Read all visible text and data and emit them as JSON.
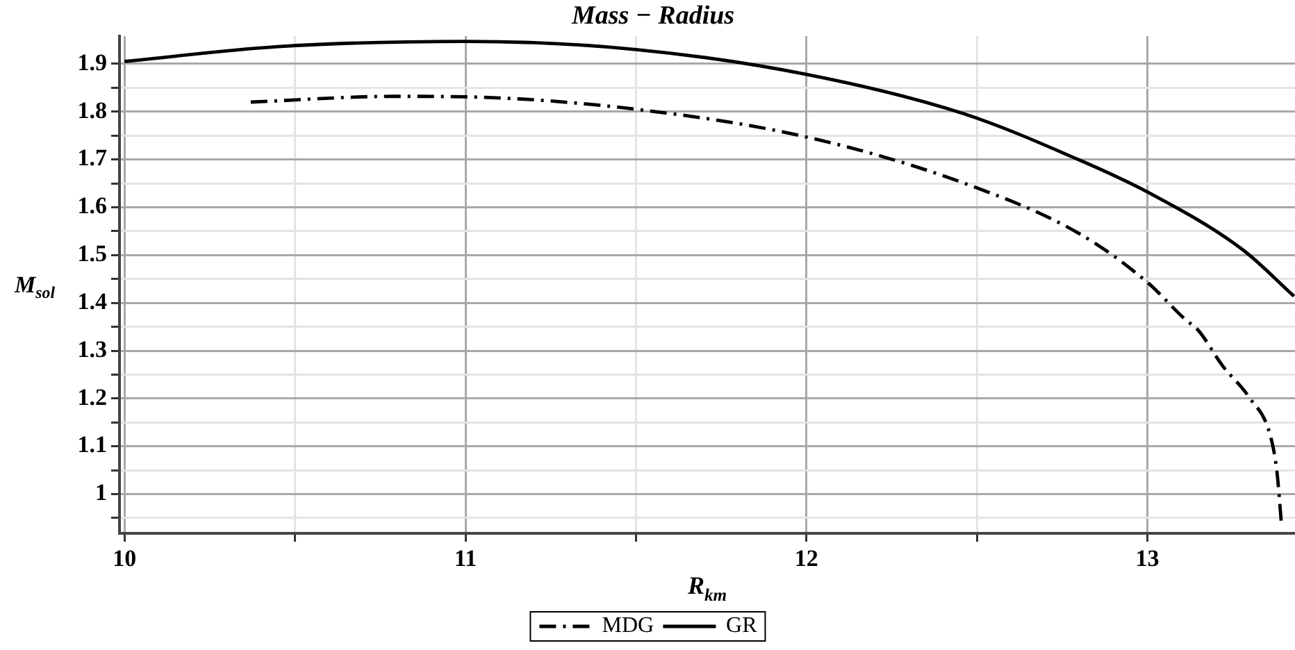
{
  "chart_data": {
    "type": "line",
    "title": "Mass − Radius",
    "xlabel": "R$_{km}$",
    "ylabel": "M$_{sol}$",
    "xlim": [
      9.985,
      13.433
    ],
    "ylim": [
      0.918,
      1.958
    ],
    "xticks": [
      10,
      {
        "value": 10.5,
        "label": null
      },
      11,
      {
        "value": 11.5,
        "label": null
      },
      12,
      {
        "value": 12.5,
        "label": null
      },
      13
    ],
    "yticks": [
      {
        "value": 0.95,
        "label": null
      },
      1,
      {
        "value": 1.05,
        "label": null
      },
      1.1,
      {
        "value": 1.15,
        "label": null
      },
      1.2,
      {
        "value": 1.25,
        "label": null
      },
      1.3,
      {
        "value": 1.35,
        "label": null
      },
      1.4,
      {
        "value": 1.45,
        "label": null
      },
      1.5,
      {
        "value": 1.55,
        "label": null
      },
      1.6,
      {
        "value": 1.65,
        "label": null
      },
      1.7,
      {
        "value": 1.75,
        "label": null
      },
      1.8,
      {
        "value": 1.85,
        "label": null
      },
      1.9
    ],
    "grid": true,
    "legend": "bottom",
    "marker": "none",
    "series": [
      {
        "name": "MDG",
        "color": "#000000",
        "line_style": "dashdot",
        "x": [
          10.37,
          10.79,
          11.0,
          11.5,
          12.0,
          12.46,
          12.8,
          13.0,
          13.11,
          13.15,
          13.22,
          13.3,
          13.36,
          13.38,
          13.394
        ],
        "values": [
          1.82,
          1.832,
          1.831,
          1.805,
          1.747,
          1.651,
          1.545,
          1.443,
          1.366,
          1.342,
          1.269,
          1.201,
          1.124,
          1.047,
          0.931
        ]
      },
      {
        "name": "GR",
        "color": "#000000",
        "line_style": "solid",
        "x": [
          10.0,
          10.45,
          11.0,
          11.5,
          12.0,
          12.46,
          12.8,
          13.0,
          13.28,
          13.43
        ],
        "values": [
          1.905,
          1.936,
          1.947,
          1.93,
          1.878,
          1.796,
          1.699,
          1.632,
          1.511,
          1.414
        ]
      }
    ]
  }
}
